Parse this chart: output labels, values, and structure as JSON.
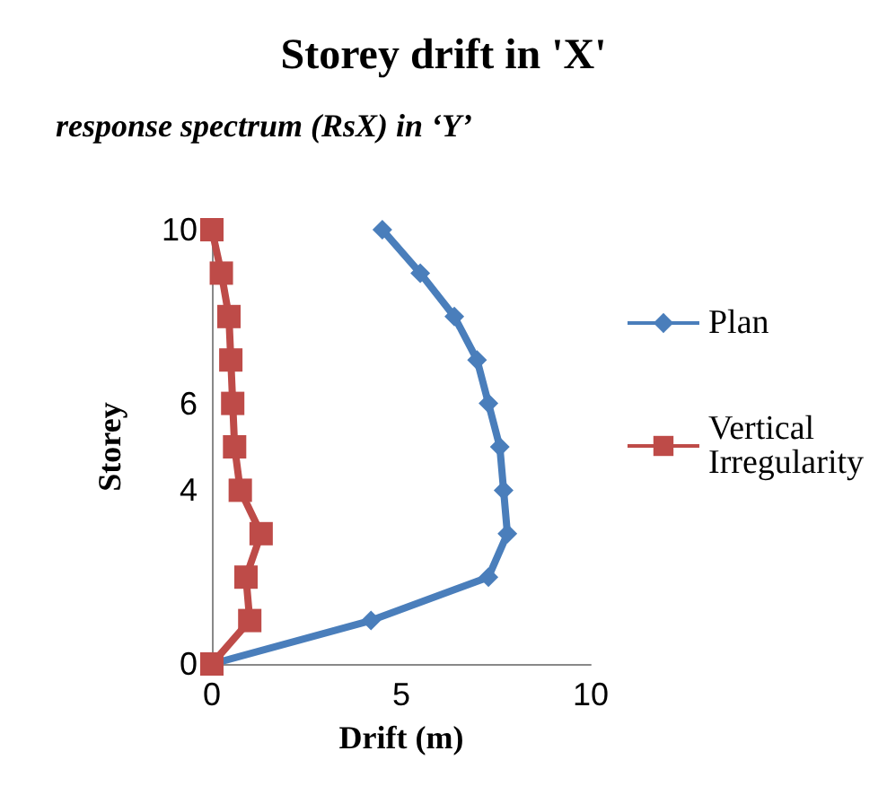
{
  "chart_data": {
    "type": "line",
    "title": "Storey drift in 'X'",
    "subtitle": "response spectrum (RsX) in ‘Y’",
    "xlabel": "Drift (m)",
    "ylabel": "Storey",
    "xlim": [
      0,
      10
    ],
    "xticks": [
      0,
      5,
      10
    ],
    "ylim": [
      0,
      10
    ],
    "yticks": [
      0,
      4,
      6,
      10
    ],
    "series": [
      {
        "name": "Plan",
        "color": "#4a7ebb",
        "marker": "diamond",
        "x": [
          0,
          4.2,
          7.3,
          7.8,
          7.7,
          7.6,
          7.3,
          7.0,
          6.4,
          5.5,
          4.5
        ],
        "values": [
          0,
          1,
          2,
          3,
          4,
          5,
          6,
          7,
          8,
          9,
          10
        ]
      },
      {
        "name": "Vertical Irregularity",
        "color": "#be4b48",
        "marker": "square",
        "x": [
          0,
          1.0,
          0.9,
          1.3,
          0.75,
          0.6,
          0.55,
          0.5,
          0.45,
          0.25,
          0
        ],
        "values": [
          0,
          1,
          2,
          3,
          4,
          5,
          6,
          7,
          8,
          9,
          10
        ]
      }
    ],
    "grid": false,
    "legend": "right"
  }
}
